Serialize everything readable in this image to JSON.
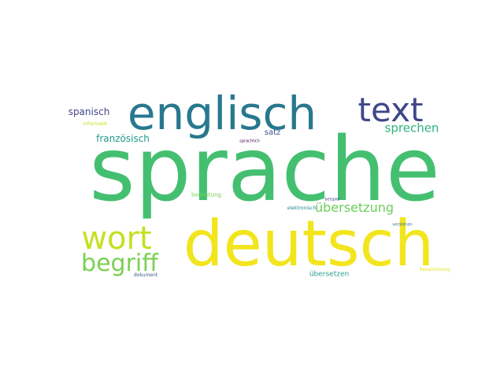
{
  "words": [
    {
      "text": "sprache",
      "color": "#44bf70"
    },
    {
      "text": "deutsch",
      "color": "#f2e51d"
    },
    {
      "text": "englisch",
      "color": "#28788e"
    },
    {
      "text": "text",
      "color": "#3f4788"
    },
    {
      "text": "wort",
      "color": "#c5e021"
    },
    {
      "text": "begriff",
      "color": "#7ad151"
    },
    {
      "text": "übersetzung",
      "color": "#6ccd5a"
    },
    {
      "text": "sprechen",
      "color": "#2db27d"
    },
    {
      "text": "französisch",
      "color": "#1f9a8a"
    },
    {
      "text": "spanisch",
      "color": "#414487"
    },
    {
      "text": "satz",
      "color": "#3b528b"
    },
    {
      "text": "übersetzen",
      "color": "#2a9d8e"
    },
    {
      "text": "bedeutung",
      "color": "#73d056"
    },
    {
      "text": "elektronisch",
      "color": "#24878e"
    },
    {
      "text": "informatik",
      "color": "#c8e020"
    },
    {
      "text": "dokument",
      "color": "#38598c"
    },
    {
      "text": "bezeichnung",
      "color": "#e5e419"
    },
    {
      "text": "sprachlich",
      "color": "#440154"
    },
    {
      "text": "beispiel",
      "color": "#3e4a89"
    },
    {
      "text": "verstehen",
      "color": "#31688e"
    }
  ]
}
